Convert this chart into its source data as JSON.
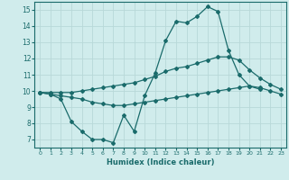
{
  "xlabel": "Humidex (Indice chaleur)",
  "x": [
    0,
    1,
    2,
    3,
    4,
    5,
    6,
    7,
    8,
    9,
    10,
    11,
    12,
    13,
    14,
    15,
    16,
    17,
    18,
    19,
    20,
    21,
    22,
    23
  ],
  "line1": [
    9.9,
    9.8,
    9.5,
    8.1,
    7.5,
    7.0,
    7.0,
    6.8,
    8.5,
    7.5,
    9.7,
    11.1,
    13.1,
    14.3,
    14.2,
    14.6,
    15.2,
    14.9,
    12.5,
    11.0,
    10.3,
    10.1,
    null,
    null
  ],
  "line2": [
    9.9,
    9.9,
    9.9,
    9.9,
    10.0,
    10.1,
    10.2,
    10.3,
    10.4,
    10.5,
    10.7,
    10.9,
    11.2,
    11.4,
    11.5,
    11.7,
    11.9,
    12.1,
    12.1,
    11.9,
    11.3,
    10.8,
    10.4,
    10.1
  ],
  "line3": [
    9.9,
    9.8,
    9.7,
    9.6,
    9.5,
    9.3,
    9.2,
    9.1,
    9.1,
    9.2,
    9.3,
    9.4,
    9.5,
    9.6,
    9.7,
    9.8,
    9.9,
    10.0,
    10.1,
    10.2,
    10.3,
    10.2,
    10.0,
    9.8
  ],
  "color": "#1a6b6b",
  "bg_color": "#d0ecec",
  "grid_color": "#b8d8d8",
  "ylim": [
    6.5,
    15.5
  ],
  "yticks": [
    7,
    8,
    9,
    10,
    11,
    12,
    13,
    14,
    15
  ],
  "xlim": [
    -0.5,
    23.5
  ],
  "marker": "D",
  "markersize": 2.0,
  "linewidth": 0.9
}
